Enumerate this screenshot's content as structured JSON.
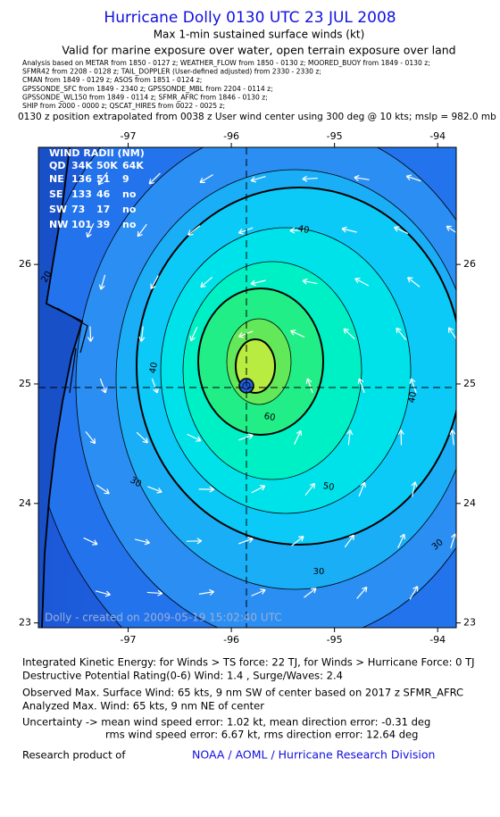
{
  "chart_data": {
    "type": "wind-map",
    "title": "Hurricane Dolly 0130 UTC 23 JUL 2008",
    "subtitle": "Max 1-min sustained surface winds (kt)",
    "subtitle2": "Valid for marine exposure over water, open terrain exposure over land",
    "analysis_notes": [
      "Analysis based on  METAR from 1850 - 0127 z;  WEATHER_FLOW from 1850 - 0130 z;  MOORED_BUOY from 1849 - 0130 z;",
      "SFMR42 from 2208 - 0128 z;  TAIL_DOPPLER (User-defined adjusted) from 2330 - 2330 z;",
      "CMAN from 1849 - 0129 z;  ASOS from 1851 - 0124 z;",
      "GPSSONDE_SFC from 1849 - 2340 z;  GPSSONDE_MBL from 2204 - 0114 z;",
      "GPSSONDE_WL150 from 1849 - 0114 z;  SFMR_AFRC from 1846 - 0130 z;",
      "SHIP from 2000 - 0000 z;  QSCAT_HIRES from 0022 - 0025 z;"
    ],
    "position_note": " 0130 z position extrapolated from 0038 z User wind center using 300 deg @ 10 kts; mslp = 982.0 mb",
    "xlim": [
      -97.87,
      -93.82
    ],
    "ylim": [
      22.96,
      26.98
    ],
    "xticks": [
      -97,
      -96,
      -95,
      -94
    ],
    "yticks": [
      23,
      24,
      25,
      26
    ],
    "wind_radii": {
      "title": "WIND RADII (NM)",
      "header": [
        "QD",
        "34K",
        "50K",
        "64K"
      ],
      "rows": [
        [
          "NE",
          136,
          51,
          9
        ],
        [
          "SE",
          133,
          46,
          "no"
        ],
        [
          "SW",
          73,
          17,
          "no"
        ],
        [
          "NW",
          101,
          39,
          "no"
        ]
      ]
    },
    "contour_labels": [
      20,
      30,
      30,
      30,
      40,
      40,
      40,
      50,
      60
    ],
    "credit": "Dolly - created on 2009-05-19 15:02:40 UTC",
    "footer_lines": [
      "Integrated Kinetic Energy:  for Winds > TS force: 22 TJ,  for Winds > Hurricane Force: 0 TJ",
      "Destructive Potential Rating(0-6)   Wind: 1.4 , Surge/Waves: 2.4",
      "Observed Max. Surface Wind: 65 kts, 9 nm SW of center based on 2017 z SFMR_AFRC",
      "Analyzed Max. Wind: 65 kts, 9 nm NE of center",
      "Uncertainty -> mean wind speed error: 1.02 kt,   mean direction error:  -0.31 deg",
      "rms wind speed error: 6.67 kt,   rms direction error: 12.64 deg"
    ],
    "research_label": "Research product of",
    "research_org": "NOAA / AOML / Hurricane Research Division"
  }
}
